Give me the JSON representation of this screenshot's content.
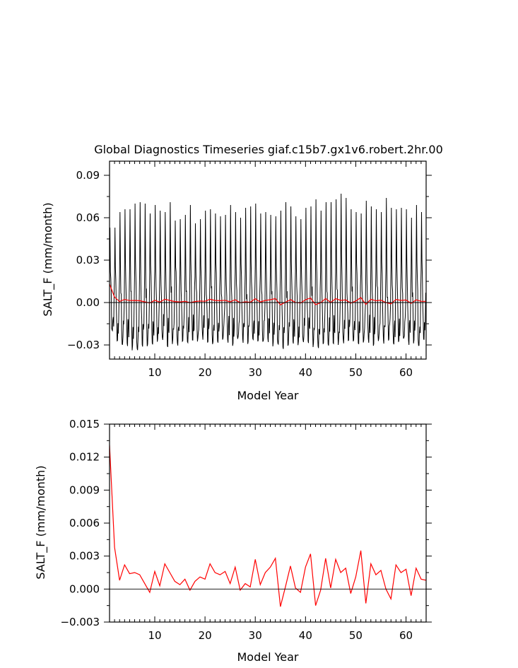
{
  "title": "Global Diagnostics Timeseries giaf.c15b7.gx1v6.robert.2hr.00",
  "colors": {
    "monthly": "#000000",
    "annual": "#ff0000",
    "zero_line": "#000000"
  },
  "chart_data": [
    {
      "type": "line",
      "xlabel": "Model Year",
      "ylabel": "SALT_F (mm/month)",
      "xlim": [
        1,
        64
      ],
      "ylim": [
        -0.04,
        0.1
      ],
      "xticks": [
        10,
        20,
        30,
        40,
        50,
        60
      ],
      "xtick_labels": [
        "10",
        "20",
        "30",
        "40",
        "50",
        "60"
      ],
      "yticks": [
        -0.03,
        0,
        0.03,
        0.06,
        0.09
      ],
      "ytick_labels": [
        "−0.03",
        "0.00",
        "0.03",
        "0.06",
        "0.09"
      ],
      "zero_line": true,
      "series": [
        {
          "kind": "monthly",
          "x_start": 1,
          "step": 0.0833333,
          "annual_peaks": [
            0.053,
            0.053,
            0.064,
            0.066,
            0.066,
            0.07,
            0.071,
            0.07,
            0.063,
            0.069,
            0.065,
            0.064,
            0.071,
            0.058,
            0.059,
            0.062,
            0.069,
            0.056,
            0.059,
            0.065,
            0.066,
            0.063,
            0.061,
            0.062,
            0.069,
            0.064,
            0.06,
            0.067,
            0.068,
            0.07,
            0.063,
            0.064,
            0.062,
            0.061,
            0.065,
            0.071,
            0.068,
            0.061,
            0.059,
            0.067,
            0.068,
            0.073,
            0.065,
            0.071,
            0.071,
            0.073,
            0.077,
            0.074,
            0.066,
            0.064,
            0.063,
            0.072,
            0.068,
            0.066,
            0.064,
            0.074,
            0.067,
            0.066,
            0.067,
            0.066,
            0.06,
            0.069,
            0.064
          ],
          "annual_troughs": [
            -0.02,
            -0.027,
            -0.03,
            -0.029,
            -0.032,
            -0.034,
            -0.03,
            -0.03,
            -0.029,
            -0.027,
            -0.026,
            -0.03,
            -0.028,
            -0.03,
            -0.027,
            -0.028,
            -0.026,
            -0.027,
            -0.025,
            -0.027,
            -0.029,
            -0.028,
            -0.026,
            -0.027,
            -0.029,
            -0.026,
            -0.027,
            -0.028,
            -0.026,
            -0.027,
            -0.028,
            -0.026,
            -0.029,
            -0.03,
            -0.032,
            -0.03,
            -0.028,
            -0.029,
            -0.028,
            -0.027,
            -0.03,
            -0.032,
            -0.029,
            -0.03,
            -0.028,
            -0.029,
            -0.028,
            -0.026,
            -0.027,
            -0.029,
            -0.028,
            -0.027,
            -0.029,
            -0.027,
            -0.028,
            -0.026,
            -0.029,
            -0.027,
            -0.026,
            -0.028,
            -0.027,
            -0.031,
            -0.026
          ]
        },
        {
          "kind": "annual",
          "x": [
            1,
            2,
            3,
            4,
            5,
            6,
            7,
            8,
            9,
            10,
            11,
            12,
            13,
            14,
            15,
            16,
            17,
            18,
            19,
            20,
            21,
            22,
            23,
            24,
            25,
            26,
            27,
            28,
            29,
            30,
            31,
            32,
            33,
            34,
            35,
            36,
            37,
            38,
            39,
            40,
            41,
            42,
            43,
            44,
            45,
            46,
            47,
            48,
            49,
            50,
            51,
            52,
            53,
            54,
            55,
            56,
            57,
            58,
            59,
            60,
            61,
            62,
            63,
            64
          ],
          "values": [
            0.0131,
            0.0038,
            0.0008,
            0.0022,
            0.0014,
            0.0015,
            0.0013,
            0.0005,
            -0.0003,
            0.0016,
            0.0003,
            0.0023,
            0.0015,
            0.0007,
            0.0004,
            0.0009,
            -0.0001,
            0.0007,
            0.0011,
            0.0009,
            0.0023,
            0.0015,
            0.0013,
            0.0016,
            0.0005,
            0.002,
            -0.0001,
            0.0005,
            0.0002,
            0.0027,
            0.0004,
            0.0015,
            0.002,
            0.0028,
            -0.0016,
            0.0002,
            0.0021,
            0.0001,
            -0.0003,
            0.002,
            0.0032,
            -0.0015,
            -0.0001,
            0.0028,
            0.0001,
            0.0027,
            0.0015,
            0.0019,
            -0.0004,
            0.0011,
            0.0035,
            -0.0013,
            0.0023,
            0.0013,
            0.0017,
            0.0,
            -0.0009,
            0.0022,
            0.0015,
            0.0018,
            -0.0006,
            0.0019,
            0.0009,
            0.0008
          ]
        }
      ]
    },
    {
      "type": "line",
      "xlabel": "Model Year",
      "ylabel": "SALT_F (mm/month)",
      "xlim": [
        1,
        64
      ],
      "ylim": [
        -0.003,
        0.015
      ],
      "xticks": [
        10,
        20,
        30,
        40,
        50,
        60
      ],
      "xtick_labels": [
        "10",
        "20",
        "30",
        "40",
        "50",
        "60"
      ],
      "yticks": [
        -0.003,
        0,
        0.003,
        0.006,
        0.009,
        0.012,
        0.015
      ],
      "ytick_labels": [
        "−0.003",
        "0.000",
        "0.003",
        "0.006",
        "0.009",
        "0.012",
        "0.015"
      ],
      "zero_line": true,
      "series": [
        {
          "kind": "annual",
          "x": [
            1,
            2,
            3,
            4,
            5,
            6,
            7,
            8,
            9,
            10,
            11,
            12,
            13,
            14,
            15,
            16,
            17,
            18,
            19,
            20,
            21,
            22,
            23,
            24,
            25,
            26,
            27,
            28,
            29,
            30,
            31,
            32,
            33,
            34,
            35,
            36,
            37,
            38,
            39,
            40,
            41,
            42,
            43,
            44,
            45,
            46,
            47,
            48,
            49,
            50,
            51,
            52,
            53,
            54,
            55,
            56,
            57,
            58,
            59,
            60,
            61,
            62,
            63,
            64
          ],
          "values": [
            0.0131,
            0.0038,
            0.0008,
            0.0022,
            0.0014,
            0.0015,
            0.0013,
            0.0005,
            -0.0003,
            0.0016,
            0.0003,
            0.0023,
            0.0015,
            0.0007,
            0.0004,
            0.0009,
            -0.0001,
            0.0007,
            0.0011,
            0.0009,
            0.0023,
            0.0015,
            0.0013,
            0.0016,
            0.0005,
            0.002,
            -0.0001,
            0.0005,
            0.0002,
            0.0027,
            0.0004,
            0.0015,
            0.002,
            0.0028,
            -0.0016,
            0.0002,
            0.0021,
            0.0001,
            -0.0003,
            0.002,
            0.0032,
            -0.0015,
            -0.0001,
            0.0028,
            0.0001,
            0.0027,
            0.0015,
            0.0019,
            -0.0004,
            0.0011,
            0.0035,
            -0.0013,
            0.0023,
            0.0013,
            0.0017,
            0.0,
            -0.0009,
            0.0022,
            0.0015,
            0.0018,
            -0.0006,
            0.0019,
            0.0009,
            0.0008
          ]
        }
      ]
    }
  ]
}
